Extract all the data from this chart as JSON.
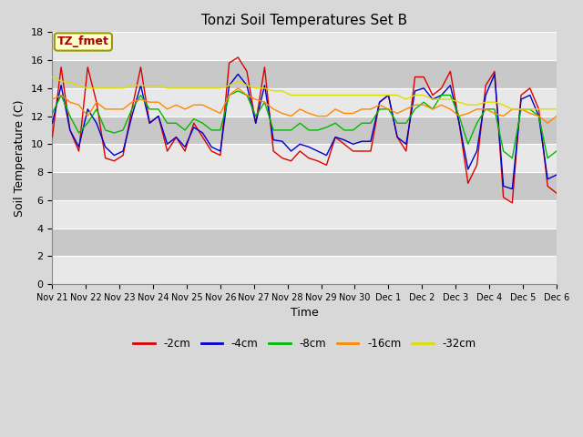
{
  "title": "Tonzi Soil Temperatures Set B",
  "xlabel": "Time",
  "ylabel": "Soil Temperature (C)",
  "ylim": [
    0,
    18
  ],
  "yticks": [
    0,
    2,
    4,
    6,
    8,
    10,
    12,
    14,
    16,
    18
  ],
  "x_labels": [
    "Nov 21",
    "Nov 22",
    "Nov 23",
    "Nov 24",
    "Nov 25",
    "Nov 26",
    "Nov 27",
    "Nov 28",
    "Nov 29",
    "Nov 30",
    "Dec 1",
    "Dec 2",
    "Dec 3",
    "Dec 4",
    "Dec 5",
    "Dec 6"
  ],
  "colors": {
    "-2cm": "#dd0000",
    "-4cm": "#0000cc",
    "-8cm": "#00bb00",
    "-16cm": "#ff8800",
    "-32cm": "#dddd00"
  },
  "legend_label_box_color": "#ffffcc",
  "legend_label_box_edge": "#999900",
  "legend_label_text": "TZ_fmet",
  "legend_label_text_color": "#aa0000",
  "bg_color": "#d8d8d8",
  "plot_bg_color": "#d8d8d8",
  "stripe_light": "#e8e8e8",
  "stripe_dark": "#c8c8c8",
  "grid_color": "#ffffff",
  "series": {
    "-2cm": [
      10.5,
      15.5,
      11.0,
      9.5,
      15.5,
      13.0,
      9.0,
      8.8,
      9.2,
      12.5,
      15.5,
      11.5,
      12.0,
      9.5,
      10.5,
      9.5,
      11.5,
      10.5,
      9.5,
      9.2,
      15.8,
      16.2,
      15.2,
      11.5,
      15.5,
      9.5,
      9.0,
      8.8,
      9.5,
      9.0,
      8.8,
      8.5,
      10.5,
      10.0,
      9.5,
      9.5,
      9.5,
      13.0,
      13.5,
      10.5,
      9.5,
      14.8,
      14.8,
      13.5,
      14.0,
      15.2,
      11.5,
      7.2,
      8.5,
      14.2,
      15.2,
      6.2,
      5.8,
      13.5,
      14.0,
      12.5,
      7.0,
      6.5
    ],
    "-4cm": [
      11.5,
      14.2,
      11.0,
      9.8,
      12.5,
      11.5,
      9.8,
      9.2,
      9.5,
      12.0,
      14.2,
      11.5,
      12.0,
      10.0,
      10.5,
      9.8,
      11.2,
      10.8,
      9.8,
      9.5,
      14.2,
      15.0,
      14.2,
      11.5,
      14.2,
      10.3,
      10.2,
      9.5,
      10.0,
      9.8,
      9.5,
      9.2,
      10.5,
      10.3,
      10.0,
      10.2,
      10.2,
      13.0,
      13.5,
      10.5,
      10.0,
      13.8,
      14.0,
      13.2,
      13.5,
      14.2,
      11.5,
      8.2,
      9.5,
      13.5,
      15.0,
      7.0,
      6.8,
      13.2,
      13.5,
      12.0,
      7.5,
      7.8
    ],
    "-8cm": [
      12.2,
      13.5,
      12.0,
      10.8,
      11.5,
      12.5,
      11.0,
      10.8,
      11.0,
      12.5,
      13.5,
      12.5,
      12.5,
      11.5,
      11.5,
      11.0,
      11.8,
      11.5,
      11.0,
      11.0,
      13.5,
      13.8,
      13.5,
      12.0,
      13.0,
      11.0,
      11.0,
      11.0,
      11.5,
      11.0,
      11.0,
      11.2,
      11.5,
      11.0,
      11.0,
      11.5,
      11.5,
      12.5,
      12.5,
      11.5,
      11.5,
      12.5,
      13.0,
      12.5,
      13.5,
      13.5,
      12.0,
      10.0,
      11.5,
      12.5,
      12.5,
      9.5,
      9.0,
      12.5,
      12.5,
      12.0,
      9.0,
      9.5
    ],
    "-16cm": [
      13.2,
      13.5,
      13.0,
      12.8,
      12.0,
      13.0,
      12.5,
      12.5,
      12.5,
      13.0,
      13.2,
      13.0,
      13.0,
      12.5,
      12.8,
      12.5,
      12.8,
      12.8,
      12.5,
      12.2,
      13.5,
      14.0,
      13.5,
      13.2,
      13.0,
      12.5,
      12.2,
      12.0,
      12.5,
      12.2,
      12.0,
      12.0,
      12.5,
      12.2,
      12.2,
      12.5,
      12.5,
      12.8,
      12.5,
      12.2,
      12.5,
      12.8,
      12.8,
      12.5,
      12.8,
      12.5,
      12.0,
      12.2,
      12.5,
      12.5,
      12.2,
      12.0,
      12.5,
      12.5,
      12.2,
      12.0,
      11.5,
      12.0
    ],
    "-32cm": [
      14.8,
      14.5,
      14.4,
      14.2,
      14.0,
      14.0,
      14.0,
      14.0,
      14.0,
      14.2,
      14.2,
      14.2,
      14.2,
      14.0,
      14.0,
      14.0,
      14.0,
      14.0,
      14.0,
      14.0,
      14.2,
      14.5,
      14.2,
      14.0,
      14.0,
      13.8,
      13.8,
      13.5,
      13.5,
      13.5,
      13.5,
      13.5,
      13.5,
      13.5,
      13.5,
      13.5,
      13.5,
      13.5,
      13.5,
      13.5,
      13.2,
      13.5,
      13.5,
      13.2,
      13.2,
      13.2,
      13.0,
      12.8,
      12.8,
      13.0,
      13.0,
      12.8,
      12.5,
      12.5,
      12.5,
      12.5,
      12.5,
      12.5
    ]
  }
}
